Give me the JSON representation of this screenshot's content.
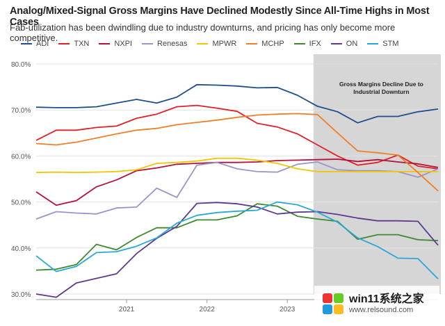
{
  "chart_data": {
    "type": "line",
    "title": "Analog/Mixed-Signal Gross Margins Have Declined Modestly Since All-Time Highs in Most Cases",
    "subtitle": "Fab-utilization has been dwindling due to industry downturns, and pricing has only become more competitive.",
    "xlabel": "",
    "ylabel": "",
    "ylim": [
      30,
      80
    ],
    "yticks": [
      30,
      40,
      50,
      60,
      70,
      80
    ],
    "ytick_labels": [
      "30.0%",
      "40.0%",
      "50.0%",
      "60.0%",
      "70.0%",
      "80.0%"
    ],
    "x_quarters": [
      "Q1 2020",
      "Q2 2020",
      "Q3 2020",
      "Q4 2020",
      "Q1 2021",
      "Q2 2021",
      "Q3 2021",
      "Q4 2021",
      "Q1 2022",
      "Q2 2022",
      "Q3 2022",
      "Q4 2022",
      "Q1 2023",
      "Q2 2023",
      "Q3 2023",
      "Q4 2023",
      "Q1 2024",
      "Q2 2024",
      "Q3 2024",
      "Q4 2024",
      "Q1 2025"
    ],
    "xtick_labels": [
      {
        "label": "2021",
        "index": 4.5
      },
      {
        "label": "2022",
        "index": 8.5
      },
      {
        "label": "2023",
        "index": 12.5
      }
    ],
    "shaded_region": {
      "start_index": 13.8,
      "end_index": 20,
      "label_line1": "Gross Margins Decline Due to",
      "label_line2": "Industrial Downturn"
    },
    "series": [
      {
        "name": "ADI",
        "color": "#1f4e8c",
        "values": [
          70.6,
          70.5,
          70.5,
          70.7,
          71.5,
          72.3,
          71.5,
          72.8,
          75.5,
          75.4,
          75.2,
          74.8,
          74.9,
          73.2,
          70.8,
          69.6,
          67.2,
          68.6,
          68.6,
          69.6,
          70.2
        ]
      },
      {
        "name": "TXN",
        "color": "#e21f26",
        "values": [
          63.4,
          65.6,
          65.6,
          66.2,
          66.5,
          68.2,
          69.1,
          70.7,
          71.0,
          70.4,
          69.7,
          67.1,
          66.3,
          64.8,
          62.4,
          60.0,
          58.0,
          58.6,
          60.2,
          57.8,
          57.2
        ]
      },
      {
        "name": "NXPI",
        "color": "#b3123a",
        "values": [
          52.2,
          49.3,
          50.3,
          53.3,
          54.8,
          56.8,
          57.4,
          58.2,
          58.4,
          58.6,
          58.6,
          58.7,
          59.0,
          59.1,
          59.2,
          59.3,
          58.8,
          59.2,
          58.7,
          58.3,
          57.5
        ]
      },
      {
        "name": "Renesas",
        "color": "#9c93c9",
        "values": [
          46.3,
          47.9,
          47.6,
          47.4,
          48.7,
          48.9,
          53.0,
          51.0,
          58.0,
          58.6,
          57.2,
          56.6,
          56.5,
          58.2,
          58.7,
          57.0,
          56.8,
          56.8,
          56.6,
          55.4,
          57.2
        ]
      },
      {
        "name": "MPWR",
        "color": "#f2c500",
        "values": [
          56.4,
          56.5,
          56.4,
          56.5,
          56.6,
          57.0,
          58.4,
          58.6,
          58.9,
          59.5,
          59.5,
          59.1,
          58.4,
          57.2,
          56.6,
          56.6,
          56.6,
          56.6,
          56.6,
          56.6,
          56.6
        ]
      },
      {
        "name": "MCHP",
        "color": "#f07f2a",
        "values": [
          62.7,
          62.4,
          63.0,
          63.9,
          64.8,
          65.6,
          66.0,
          66.8,
          67.3,
          67.8,
          68.4,
          68.9,
          69.1,
          69.2,
          69.0,
          65.0,
          61.1,
          60.7,
          60.2,
          56.4,
          52.4
        ]
      },
      {
        "name": "IFX",
        "color": "#3a8a2e",
        "values": [
          35.2,
          35.4,
          36.4,
          40.8,
          39.6,
          42.3,
          44.4,
          44.4,
          46.1,
          46.1,
          47.0,
          49.6,
          49.1,
          46.9,
          46.3,
          45.8,
          41.9,
          42.9,
          42.9,
          41.8,
          41.6
        ]
      },
      {
        "name": "ON",
        "color": "#5c3a8e",
        "values": [
          30.0,
          29.3,
          32.4,
          33.4,
          34.4,
          38.8,
          42.1,
          44.7,
          49.7,
          49.9,
          49.6,
          48.9,
          47.4,
          47.8,
          47.9,
          47.3,
          46.5,
          45.9,
          45.9,
          45.8,
          40.6
        ]
      },
      {
        "name": "STM",
        "color": "#29a8d8",
        "values": [
          38.3,
          34.9,
          36.0,
          39.0,
          39.2,
          40.4,
          42.2,
          45.4,
          47.1,
          47.7,
          48.0,
          48.2,
          50.0,
          49.4,
          47.8,
          45.6,
          42.2,
          40.3,
          37.8,
          37.7,
          33.3
        ]
      }
    ]
  },
  "watermark": {
    "main": "win11系统之家",
    "sub": "www.relsound.com"
  }
}
